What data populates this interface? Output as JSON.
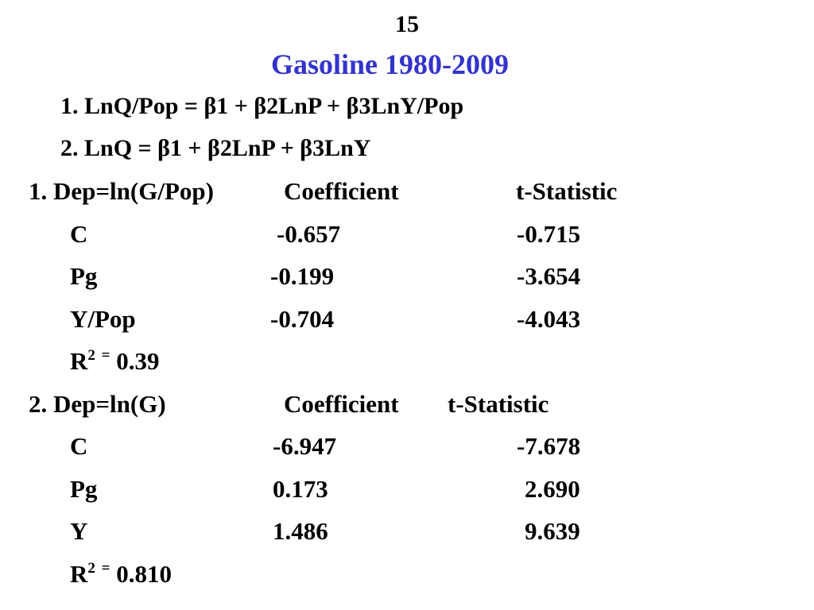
{
  "slide": {
    "number": "15",
    "title": "Gasoline 1980-2009",
    "title_color": "#3333cc"
  },
  "equations": [
    "1. LnQ/Pop = β1 + β2LnP + β3LnY/Pop",
    "2. LnQ = β1 + β2LnP + β3LnY"
  ],
  "model1": {
    "header": {
      "dep": "1. Dep=ln(G/Pop)",
      "coef_label": "Coefficient",
      "tstat_label": "t-Statistic"
    },
    "rows": [
      {
        "var": "C",
        "coef": "-0.657",
        "tstat": "-0.715"
      },
      {
        "var": "Pg",
        "coef": "-0.199",
        "tstat": "-3.654"
      },
      {
        "var": "Y/Pop",
        "coef": "-0.704",
        "tstat": "-4.043"
      }
    ],
    "r2": {
      "label": "R",
      "sup": "2",
      "eq": "=",
      "value": "0.39"
    }
  },
  "model2": {
    "header": {
      "dep": "2. Dep=ln(G)",
      "coef_label": "Coefficient",
      "tstat_label": "t-Statistic"
    },
    "rows": [
      {
        "var": "C",
        "coef": "-6.947",
        "tstat": "-7.678"
      },
      {
        "var": "Pg",
        "coef": "0.173",
        "tstat": "2.690"
      },
      {
        "var": "Y",
        "coef": "1.486",
        "tstat": "9.639"
      }
    ],
    "r2": {
      "label": "R",
      "sup": "2",
      "eq": "=",
      "value": "0.810"
    }
  }
}
